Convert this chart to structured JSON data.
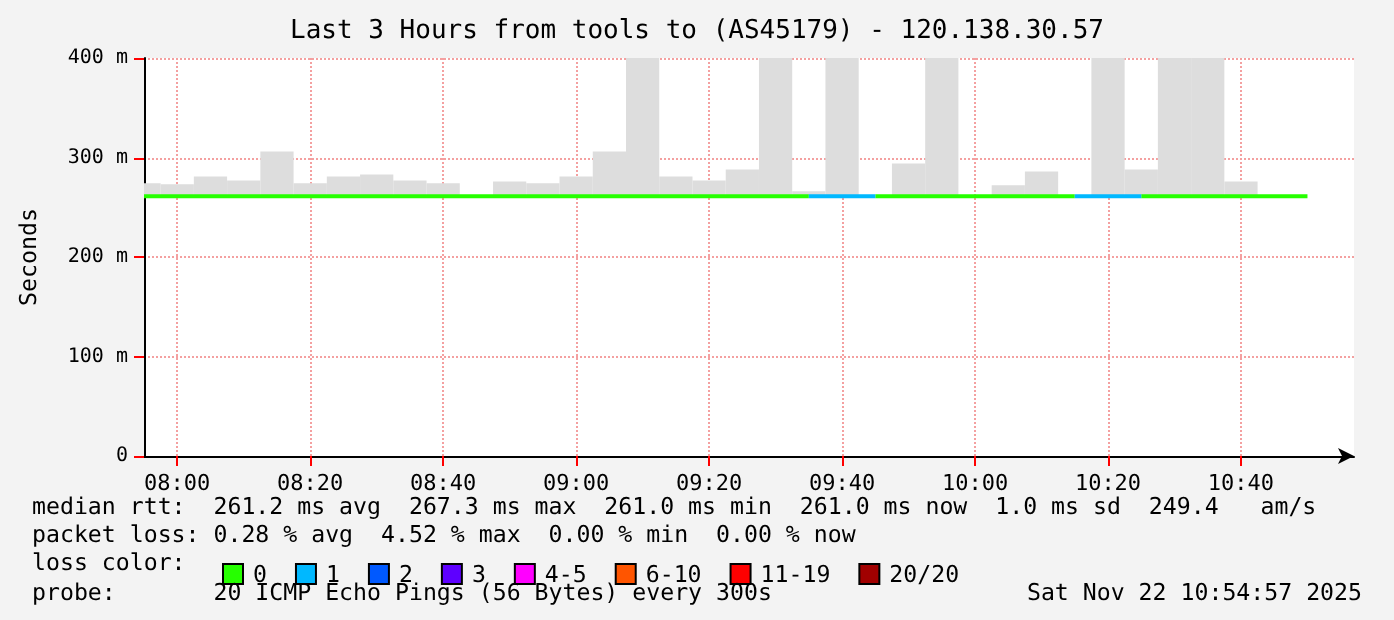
{
  "chart_data": {
    "type": "line",
    "title": "Last 3 Hours from tools to (AS45179) - 120.138.30.57",
    "ylabel": "Seconds",
    "legend_title": "loss color:",
    "legend": "bottom",
    "grid": true,
    "xlim": [
      "2025-11-22T07:55",
      "2025-11-22T10:57"
    ],
    "xticks": [
      {
        "value": "2025-11-22T08:00",
        "label": "08:00"
      },
      {
        "value": "2025-11-22T08:20",
        "label": "08:20"
      },
      {
        "value": "2025-11-22T08:40",
        "label": "08:40"
      },
      {
        "value": "2025-11-22T09:00",
        "label": "09:00"
      },
      {
        "value": "2025-11-22T09:20",
        "label": "09:20"
      },
      {
        "value": "2025-11-22T09:40",
        "label": "09:40"
      },
      {
        "value": "2025-11-22T10:00",
        "label": "10:00"
      },
      {
        "value": "2025-11-22T10:20",
        "label": "10:20"
      },
      {
        "value": "2025-11-22T10:40",
        "label": "10:40"
      }
    ],
    "ylim": [
      0,
      400
    ],
    "yticks": [
      0,
      {
        "value": 100,
        "label": "100 m"
      },
      {
        "value": 200,
        "label": "200 m"
      },
      {
        "value": 300,
        "label": "300 m"
      },
      {
        "value": 400,
        "label": "400 m"
      }
    ],
    "x": [
      "2025-11-22T07:55",
      "2025-11-22T08:00",
      "2025-11-22T08:05",
      "2025-11-22T08:10",
      "2025-11-22T08:15",
      "2025-11-22T08:20",
      "2025-11-22T08:25",
      "2025-11-22T08:30",
      "2025-11-22T08:35",
      "2025-11-22T08:40",
      "2025-11-22T08:45",
      "2025-11-22T08:50",
      "2025-11-22T08:55",
      "2025-11-22T09:00",
      "2025-11-22T09:05",
      "2025-11-22T09:10",
      "2025-11-22T09:15",
      "2025-11-22T09:20",
      "2025-11-22T09:25",
      "2025-11-22T09:30",
      "2025-11-22T09:35",
      "2025-11-22T09:40",
      "2025-11-22T09:45",
      "2025-11-22T09:50",
      "2025-11-22T09:55",
      "2025-11-22T10:00",
      "2025-11-22T10:05",
      "2025-11-22T10:10",
      "2025-11-22T10:15",
      "2025-11-22T10:20",
      "2025-11-22T10:25",
      "2025-11-22T10:30",
      "2025-11-22T10:35",
      "2025-11-22T10:40",
      "2025-11-22T10:45",
      "2025-11-22T10:50"
    ],
    "series": [
      {
        "type": "bar",
        "color": "#dddddd",
        "x": [
          "2025-11-22T07:55",
          "2025-11-22T08:00",
          "2025-11-22T08:05",
          "2025-11-22T08:10",
          "2025-11-22T08:15",
          "2025-11-22T08:20",
          "2025-11-22T08:25",
          "2025-11-22T08:30",
          "2025-11-22T08:35",
          "2025-11-22T08:40",
          "2025-11-22T08:45",
          "2025-11-22T08:50",
          "2025-11-22T08:55",
          "2025-11-22T09:00",
          "2025-11-22T09:05",
          "2025-11-22T09:10",
          "2025-11-22T09:15",
          "2025-11-22T09:20",
          "2025-11-22T09:25",
          "2025-11-22T09:30",
          "2025-11-22T09:35",
          "2025-11-22T09:40",
          "2025-11-22T09:45",
          "2025-11-22T09:50",
          "2025-11-22T09:55",
          "2025-11-22T10:00",
          "2025-11-22T10:05",
          "2025-11-22T10:10",
          "2025-11-22T10:15",
          "2025-11-22T10:20",
          "2025-11-22T10:25",
          "2025-11-22T10:30",
          "2025-11-22T10:35",
          "2025-11-22T10:40"
        ],
        "base": [
          262,
          262,
          262,
          262,
          262,
          262,
          262,
          262,
          262,
          262,
          null,
          262,
          262,
          262,
          262,
          262,
          262,
          262,
          262,
          262,
          262,
          262,
          null,
          262,
          262,
          null,
          262,
          262,
          null,
          262,
          262,
          262,
          262,
          262
        ],
        "values": [
          12,
          11,
          19,
          15,
          44,
          12,
          19,
          21,
          15,
          12,
          null,
          14,
          12,
          19,
          44,
          138,
          19,
          15,
          26,
          138,
          4,
          138,
          null,
          32,
          138,
          null,
          10,
          24,
          null,
          138,
          26,
          138,
          138,
          14
        ]
      },
      {
        "name": "0",
        "color": "#26ff00",
        "values": [
          261,
          261,
          261,
          261,
          261,
          261,
          261,
          261,
          261,
          261,
          261,
          261,
          261,
          261,
          261,
          261,
          261,
          261,
          261,
          261,
          261,
          null,
          261,
          261,
          261,
          261,
          261,
          261,
          261,
          null,
          261,
          261,
          261,
          261,
          261,
          261
        ]
      },
      {
        "name": "1",
        "color": "#00b8ff",
        "values": [
          null,
          null,
          null,
          null,
          null,
          null,
          null,
          null,
          null,
          null,
          null,
          null,
          null,
          null,
          null,
          null,
          null,
          null,
          null,
          null,
          261,
          261,
          261,
          null,
          null,
          null,
          null,
          null,
          261,
          261,
          261,
          null,
          null,
          null,
          null,
          null
        ]
      },
      {
        "name": "2",
        "color": "#0059ff",
        "values": [
          null,
          null,
          null,
          null,
          null,
          null,
          null,
          null,
          null,
          null,
          null,
          null,
          null,
          null,
          null,
          null,
          null,
          null,
          null,
          null,
          null,
          null,
          null,
          null,
          null,
          null,
          null,
          null,
          null,
          null,
          null,
          null,
          null,
          null,
          null,
          null
        ]
      },
      {
        "name": "3",
        "color": "#5e00ff",
        "values": [
          null,
          null,
          null,
          null,
          null,
          null,
          null,
          null,
          null,
          null,
          null,
          null,
          null,
          null,
          null,
          null,
          null,
          null,
          null,
          null,
          null,
          null,
          null,
          null,
          null,
          null,
          null,
          null,
          null,
          null,
          null,
          null,
          null,
          null,
          null,
          null
        ]
      },
      {
        "name": "4-5",
        "color": "#ff00ff",
        "values": [
          null,
          null,
          null,
          null,
          null,
          null,
          null,
          null,
          null,
          null,
          null,
          null,
          null,
          null,
          null,
          null,
          null,
          null,
          null,
          null,
          null,
          null,
          null,
          null,
          null,
          null,
          null,
          null,
          null,
          null,
          null,
          null,
          null,
          null,
          null,
          null
        ]
      },
      {
        "name": "6-10",
        "color": "#ff5500",
        "values": [
          null,
          null,
          null,
          null,
          null,
          null,
          null,
          null,
          null,
          null,
          null,
          null,
          null,
          null,
          null,
          null,
          null,
          null,
          null,
          null,
          null,
          null,
          null,
          null,
          null,
          null,
          null,
          null,
          null,
          null,
          null,
          null,
          null,
          null,
          null,
          null
        ]
      },
      {
        "name": "11-19",
        "color": "#ff0000",
        "values": [
          null,
          null,
          null,
          null,
          null,
          null,
          null,
          null,
          null,
          null,
          null,
          null,
          null,
          null,
          null,
          null,
          null,
          null,
          null,
          null,
          null,
          null,
          null,
          null,
          null,
          null,
          null,
          null,
          null,
          null,
          null,
          null,
          null,
          null,
          null,
          null
        ]
      },
      {
        "name": "20/20",
        "color": "#a10000",
        "values": [
          null,
          null,
          null,
          null,
          null,
          null,
          null,
          null,
          null,
          null,
          null,
          null,
          null,
          null,
          null,
          null,
          null,
          null,
          null,
          null,
          null,
          null,
          null,
          null,
          null,
          null,
          null,
          null,
          null,
          null,
          null,
          null,
          null,
          null,
          null,
          null
        ]
      }
    ],
    "annotations": [
      "median rtt:  261.2 ms avg  267.3 ms max  261.0 ms min  261.0 ms now  1.0 ms sd  249.4   am/s",
      "packet loss: 0.28 % avg  4.52 % max  0.00 % min  0.00 % now",
      "probe:       20 ICMP Echo Pings (56 Bytes) every 300s",
      "Sat Nov 22 10:54:57 2025"
    ]
  }
}
